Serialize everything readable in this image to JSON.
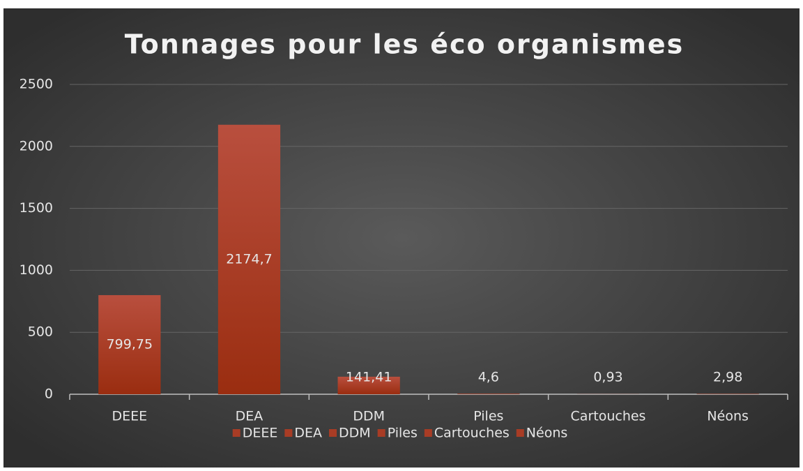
{
  "chart_data": {
    "type": "bar",
    "title": "Tonnages pour les éco organismes",
    "categories": [
      "DEEE",
      "DEA",
      "DDM",
      "Piles",
      "Cartouches",
      "Néons"
    ],
    "values": [
      799.75,
      2174.7,
      141.41,
      4.6,
      0.93,
      2.98
    ],
    "value_labels": [
      "799,75",
      "2174,7",
      "141,41",
      "4,6",
      "0,93",
      "2,98"
    ],
    "color": "#a83c25",
    "ylim": [
      0,
      2500
    ],
    "yticks": [
      0,
      500,
      1000,
      1500,
      2000,
      2500
    ],
    "grid": true,
    "legend": "bottom"
  }
}
